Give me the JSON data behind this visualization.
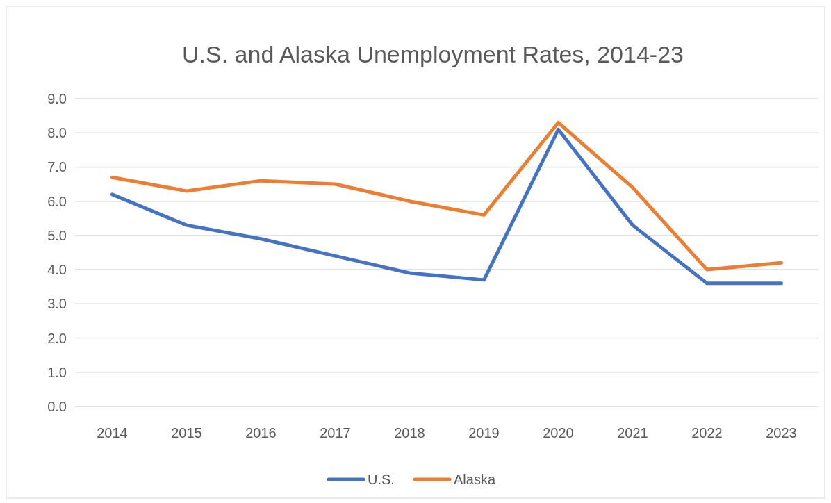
{
  "chart_data": {
    "type": "line",
    "title": "U.S. and Alaska Unemployment Rates, 2014-23",
    "categories": [
      "2014",
      "2015",
      "2016",
      "2017",
      "2018",
      "2019",
      "2020",
      "2021",
      "2022",
      "2023"
    ],
    "series": [
      {
        "name": "U.S.",
        "color": "#4472c4",
        "values": [
          6.2,
          5.3,
          4.9,
          4.4,
          3.9,
          3.7,
          8.1,
          5.3,
          3.6,
          3.6
        ]
      },
      {
        "name": "Alaska",
        "color": "#ed7d31",
        "values": [
          6.7,
          6.3,
          6.6,
          6.5,
          6.0,
          5.6,
          8.3,
          6.4,
          4.0,
          4.2
        ]
      }
    ],
    "ylim": [
      0,
      9
    ],
    "yticks": [
      {
        "value": 0,
        "label": "0.0"
      },
      {
        "value": 1,
        "label": "1.0"
      },
      {
        "value": 2,
        "label": "2.0"
      },
      {
        "value": 3,
        "label": "3.0"
      },
      {
        "value": 4,
        "label": "4.0"
      },
      {
        "value": 5,
        "label": "5.0"
      },
      {
        "value": 6,
        "label": "6.0"
      },
      {
        "value": 7,
        "label": "7.0"
      },
      {
        "value": 8,
        "label": "8.0"
      },
      {
        "value": 9,
        "label": "9.0"
      }
    ],
    "grid": "y",
    "legend": "bottom",
    "marker": "none",
    "line_style": "solid"
  }
}
